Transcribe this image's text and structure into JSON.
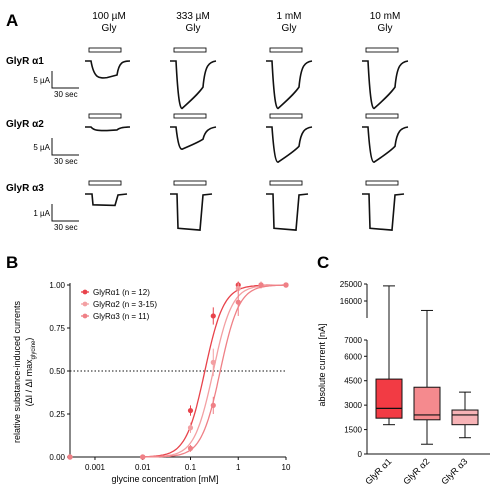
{
  "panel_a": {
    "letter": "A",
    "columns": [
      {
        "line1": "100 µM",
        "line2": "Gly"
      },
      {
        "line1": "333 µM",
        "line2": "Gly"
      },
      {
        "line1": "1 mM",
        "line2": "Gly"
      },
      {
        "line1": "10 mM",
        "line2": "Gly"
      }
    ],
    "rows": [
      {
        "label": "GlyR α1",
        "scale_y": "5 µA",
        "scale_x": "30 sec"
      },
      {
        "label": "GlyR α2",
        "scale_y": "5 µA",
        "scale_x": "30 sec"
      },
      {
        "label": "GlyR α3",
        "scale_y": "1 µA",
        "scale_x": "30 sec"
      }
    ],
    "trace_depths": [
      [
        0.35,
        0.95,
        0.95,
        0.95
      ],
      [
        0.1,
        0.6,
        0.95,
        0.95
      ],
      [
        0.3,
        0.95,
        0.95,
        0.95
      ]
    ]
  },
  "chart_data": [
    {
      "panel": "B",
      "type": "scatter",
      "xlabel": "glycine concentration [mM]",
      "ylabel_line1": "relative substance-induced currents",
      "ylabel_line2": "(ΔI / ΔI max",
      "ylabel_sub": "glycine",
      "ylabel_end": ")",
      "x_scale": "log",
      "xlim": [
        0.0003,
        10
      ],
      "ylim": [
        0,
        1
      ],
      "x_ticks": [
        0.001,
        0.01,
        0.1,
        1,
        10
      ],
      "x_tick_labels": [
        "0.001",
        "0.01",
        "0.1",
        "1",
        "10"
      ],
      "y_ticks": [
        0,
        0.25,
        0.5,
        0.75,
        1.0
      ],
      "y_tick_labels": [
        "0.00",
        "0.25",
        "0.50",
        "0.75",
        "1.00"
      ],
      "reference_line_y": 0.5,
      "legend_placement": "top-left",
      "series": [
        {
          "name": "GlyRα1 (n = 12)",
          "color": "#e8434b",
          "x": [
            0.0003,
            0.01,
            0.1,
            0.3,
            1,
            3,
            10
          ],
          "y": [
            0.0,
            0.0,
            0.27,
            0.82,
            1.0,
            1.0,
            1.0
          ],
          "err": [
            0,
            0,
            0.03,
            0.05,
            0.02,
            0.0,
            0.0
          ]
        },
        {
          "name": "GlyRα2 (n = 3-15)",
          "color": "#f3a0a3",
          "x": [
            0.0003,
            0.01,
            0.1,
            0.3,
            1,
            3,
            10
          ],
          "y": [
            0.0,
            0.0,
            0.17,
            0.55,
            0.98,
            1.0,
            1.0
          ],
          "err": [
            0,
            0,
            0.03,
            0.08,
            0.03,
            0.0,
            0.0
          ]
        },
        {
          "name": "GlyRα3 (n = 11)",
          "color": "#ef8086",
          "x": [
            0.0003,
            0.01,
            0.1,
            0.3,
            1,
            3,
            10
          ],
          "y": [
            0.0,
            0.0,
            0.05,
            0.3,
            0.9,
            1.0,
            1.0
          ],
          "err": [
            0,
            0,
            0.02,
            0.05,
            0.08,
            0.02,
            0.0
          ]
        }
      ]
    },
    {
      "panel": "C",
      "type": "box",
      "ylabel": "absolute current [nA]",
      "y_axis_break": true,
      "y_ticks_lower": [
        0,
        1500,
        3000,
        4500,
        6000,
        7000
      ],
      "y_tick_labels_lower": [
        "0",
        "1500",
        "3000",
        "4500",
        "6000",
        "7000"
      ],
      "y_ticks_upper": [
        16000,
        25000
      ],
      "y_tick_labels_upper": [
        "16000",
        "25000"
      ],
      "categories": [
        "GlyR α1",
        "GlyR α2",
        "GlyR α3"
      ],
      "colors": [
        "#f23b44",
        "#f58a8e",
        "#f7b3b6"
      ],
      "boxes": [
        {
          "min": 1800,
          "q1": 2200,
          "median": 2800,
          "q3": 4600,
          "max": 24000
        },
        {
          "min": 600,
          "q1": 2100,
          "median": 2400,
          "q3": 4100,
          "max": 11000
        },
        {
          "min": 1000,
          "q1": 1800,
          "median": 2400,
          "q3": 2700,
          "max": 3800
        }
      ]
    }
  ],
  "panel_b_letter": "B",
  "panel_c_letter": "C"
}
